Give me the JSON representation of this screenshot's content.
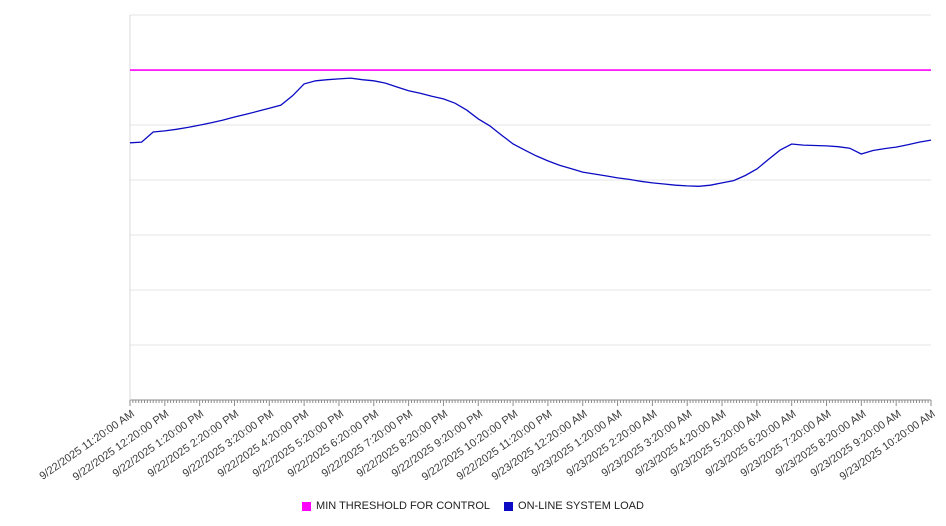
{
  "colors": {
    "threshold_line": "#ff00ff",
    "load_line": "#0b0bc4",
    "gridline": "#e4e4e4",
    "axis_line": "#8c8c8c",
    "left_axis_line": "#d9d9d9",
    "tick_mark": "#8c8c8c",
    "label_text": "#3c3c3c"
  },
  "legend": {
    "items": [
      {
        "label": "MIN THRESHOLD FOR CONTROL",
        "color": "#ff00ff"
      },
      {
        "label": "ON-LINE SYSTEM LOAD",
        "color": "#0b0bc4"
      }
    ]
  },
  "chart_data": {
    "type": "line",
    "title": "",
    "xlabel": "",
    "ylabel": "",
    "y_axis_labels_visible": false,
    "value_scale_note": "no y-axis tick labels visible; values normalized 0-100 of plot height",
    "ylim": [
      0,
      100
    ],
    "grid": "horizontal",
    "legend_position": "bottom-center",
    "x_tick_labels": [
      "9/22/2025 11:20:00 AM",
      "9/22/2025 12:20:00 PM",
      "9/22/2025 1:20:00 PM",
      "9/22/2025 2:20:00 PM",
      "9/22/2025 3:20:00 PM",
      "9/22/2025 4:20:00 PM",
      "9/22/2025 5:20:00 PM",
      "9/22/2025 6:20:00 PM",
      "9/22/2025 7:20:00 PM",
      "9/22/2025 8:20:00 PM",
      "9/22/2025 9:20:00 PM",
      "9/22/2025 10:20:00 PM",
      "9/22/2025 11:20:00 PM",
      "9/23/2025 12:20:00 AM",
      "9/23/2025 1:20:00 AM",
      "9/23/2025 2:20:00 AM",
      "9/23/2025 3:20:00 AM",
      "9/23/2025 4:20:00 AM",
      "9/23/2025 5:20:00 AM",
      "9/23/2025 6:20:00 AM",
      "9/23/2025 7:20:00 AM",
      "9/23/2025 8:20:00 AM",
      "9/23/2025 9:20:00 AM",
      "9/23/2025 10:20:00 AM"
    ],
    "series": [
      {
        "name": "MIN THRESHOLD FOR CONTROL",
        "color": "#ff00ff",
        "style": "constant-horizontal-line",
        "value": 85.7
      },
      {
        "name": "ON-LINE SYSTEM LOAD",
        "color": "#0b0bc4",
        "sampling": "every 20 minutes from 9/22/2025 11:20 AM to 9/23/2025 10:20 AM",
        "values": [
          66.8,
          67.0,
          69.6,
          69.9,
          70.3,
          70.8,
          71.4,
          72.0,
          72.7,
          73.5,
          74.2,
          75.0,
          75.8,
          76.6,
          79.0,
          82.1,
          82.9,
          83.2,
          83.4,
          83.6,
          83.2,
          82.9,
          82.3,
          81.3,
          80.3,
          79.7,
          78.9,
          78.2,
          77.1,
          75.3,
          73.0,
          71.2,
          68.8,
          66.5,
          64.9,
          63.4,
          62.1,
          61.0,
          60.1,
          59.2,
          58.7,
          58.2,
          57.7,
          57.3,
          56.8,
          56.4,
          56.1,
          55.8,
          55.6,
          55.5,
          55.8,
          56.4,
          57.0,
          58.3,
          60.0,
          62.5,
          64.9,
          66.5,
          66.2,
          66.1,
          66.0,
          65.8,
          65.4,
          63.9,
          64.8,
          65.3,
          65.7,
          66.3,
          67.0,
          67.5
        ]
      }
    ]
  }
}
